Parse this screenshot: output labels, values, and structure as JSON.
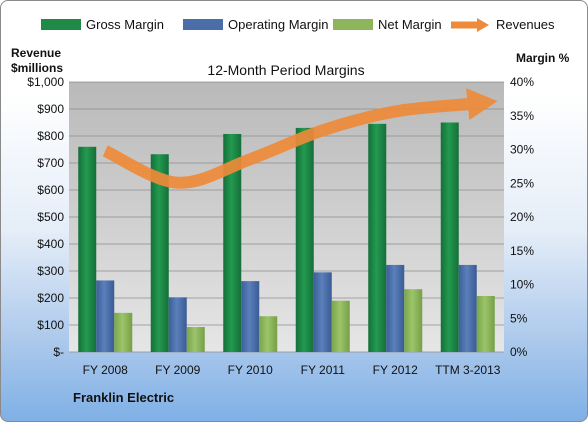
{
  "chart_data": {
    "type": "bar",
    "title": "12-Month Period Margins",
    "left_axis_label_line1": "Revenue",
    "left_axis_label_line2": "$millions",
    "right_axis_label": "Margin %",
    "footer": "Franklin Electric",
    "categories": [
      "FY 2008",
      "FY 2009",
      "FY 2010",
      "FY 2011",
      "FY 2012",
      "TTM 3-2013"
    ],
    "left_ticks": [
      "$-",
      "$100",
      "$200",
      "$300",
      "$400",
      "$500",
      "$600",
      "$700",
      "$800",
      "$900",
      "$1,000"
    ],
    "right_ticks": [
      "0%",
      "5%",
      "10%",
      "15%",
      "20%",
      "25%",
      "30%",
      "35%",
      "40%"
    ],
    "left_ylim": [
      0,
      1000
    ],
    "right_ylim": [
      0,
      40
    ],
    "grid": true,
    "legend_position": "top",
    "series": [
      {
        "name": "Gross Margin",
        "axis": "right",
        "color": "#1e8a45",
        "values": [
          30.4,
          29.3,
          32.3,
          33.2,
          33.8,
          34.0
        ]
      },
      {
        "name": "Operating Margin",
        "axis": "right",
        "color": "#4b6ea8",
        "values": [
          10.6,
          8.1,
          10.5,
          11.8,
          12.9,
          12.9
        ]
      },
      {
        "name": "Net Margin",
        "axis": "right",
        "color": "#8db65c",
        "values": [
          5.8,
          3.7,
          5.3,
          7.6,
          9.3,
          8.3
        ]
      },
      {
        "name": "Revenues",
        "axis": "left",
        "color": "#ee8a3a",
        "values": [
          745,
          627,
          714,
          821,
          891,
          918
        ]
      }
    ]
  }
}
